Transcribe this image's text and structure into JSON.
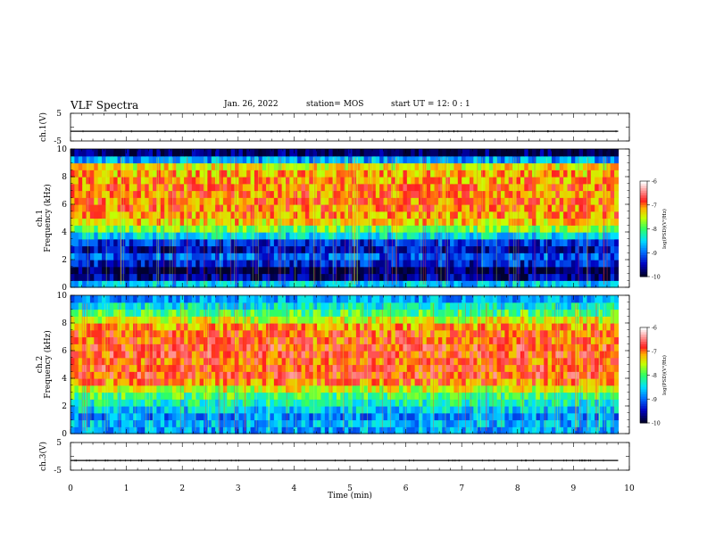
{
  "header": {
    "title": "VLF Spectra",
    "date": "Jan. 26, 2022",
    "station": "station= MOS",
    "start_ut": "start  UT =   12: 0  : 1"
  },
  "colors": {
    "spectrum_scale": [
      "#000033",
      "#0000c8",
      "#0080ff",
      "#00e0ff",
      "#30ff60",
      "#c8ff00",
      "#ffb000",
      "#ff2020",
      "#ffc8c8",
      "#ffffff"
    ]
  },
  "chart_data": [
    {
      "type": "line",
      "id": "wave1",
      "ylabel": "ch.1(V)",
      "yticks": [
        "5",
        "-5"
      ],
      "ylim": [
        -5,
        5
      ],
      "xlim": [
        0,
        10
      ],
      "x": [
        0,
        9.8
      ],
      "y": [
        -1.5,
        -1.5
      ]
    },
    {
      "type": "heatmap",
      "id": "spec1",
      "ylabel": "ch.1\nFrequency (kHz)",
      "yticks": [
        "0",
        "2",
        "4",
        "6",
        "8",
        "10"
      ],
      "ylim": [
        0,
        10
      ],
      "xlim": [
        0,
        9.8
      ],
      "freq_bands_khz": [
        0,
        0.5,
        1,
        1.5,
        2,
        2.5,
        3,
        3.5,
        4,
        4.5,
        5,
        5.5,
        6,
        6.5,
        7,
        7.5,
        8,
        8.5,
        9,
        9.5,
        10
      ],
      "log_psd": [
        -8.6,
        -9.7,
        -9.9,
        -9.4,
        -9.1,
        -9.5,
        -9.3,
        -8.5,
        -7.8,
        -7.3,
        -7.1,
        -7.0,
        -7.0,
        -7.0,
        -7.0,
        -7.1,
        -7.2,
        -7.4,
        -8.8,
        -9.9
      ],
      "colorbar": {
        "label": "log(PSD)(V²/Hz)",
        "ticks": [
          "-6",
          "-7",
          "-8",
          "-9",
          "-10"
        ],
        "range": [
          -10,
          -6
        ]
      }
    },
    {
      "type": "heatmap",
      "id": "spec2",
      "ylabel": "ch.2\nFrequency (kHz)",
      "yticks": [
        "0",
        "2",
        "4",
        "6",
        "8",
        "10"
      ],
      "ylim": [
        0,
        10
      ],
      "xlim": [
        0,
        9.8
      ],
      "freq_bands_khz": [
        0,
        0.5,
        1,
        1.5,
        2,
        2.5,
        3,
        3.5,
        4,
        4.5,
        5,
        5.5,
        6,
        6.5,
        7,
        7.5,
        8,
        8.5,
        9,
        9.5,
        10
      ],
      "log_psd": [
        -8.8,
        -8.7,
        -8.9,
        -8.6,
        -8.3,
        -8.0,
        -7.5,
        -7.0,
        -6.8,
        -6.8,
        -6.9,
        -6.8,
        -6.8,
        -6.9,
        -6.9,
        -7.1,
        -7.5,
        -8.0,
        -8.4,
        -8.8
      ],
      "colorbar": {
        "label": "log(PSD)(V²/Hz)",
        "ticks": [
          "-6",
          "-7",
          "-8",
          "-9",
          "-10"
        ],
        "range": [
          -10,
          -6
        ]
      }
    },
    {
      "type": "line",
      "id": "wave3",
      "ylabel": "ch.3(V)",
      "yticks": [
        "5",
        "-5"
      ],
      "ylim": [
        -5,
        5
      ],
      "xlim": [
        0,
        10
      ],
      "x": [
        0,
        9.8
      ],
      "y": [
        -1.5,
        -1.5
      ],
      "xlabel": "Time (min)",
      "xticks": [
        "0",
        "1",
        "2",
        "3",
        "4",
        "5",
        "6",
        "7",
        "8",
        "9",
        "10"
      ]
    }
  ]
}
